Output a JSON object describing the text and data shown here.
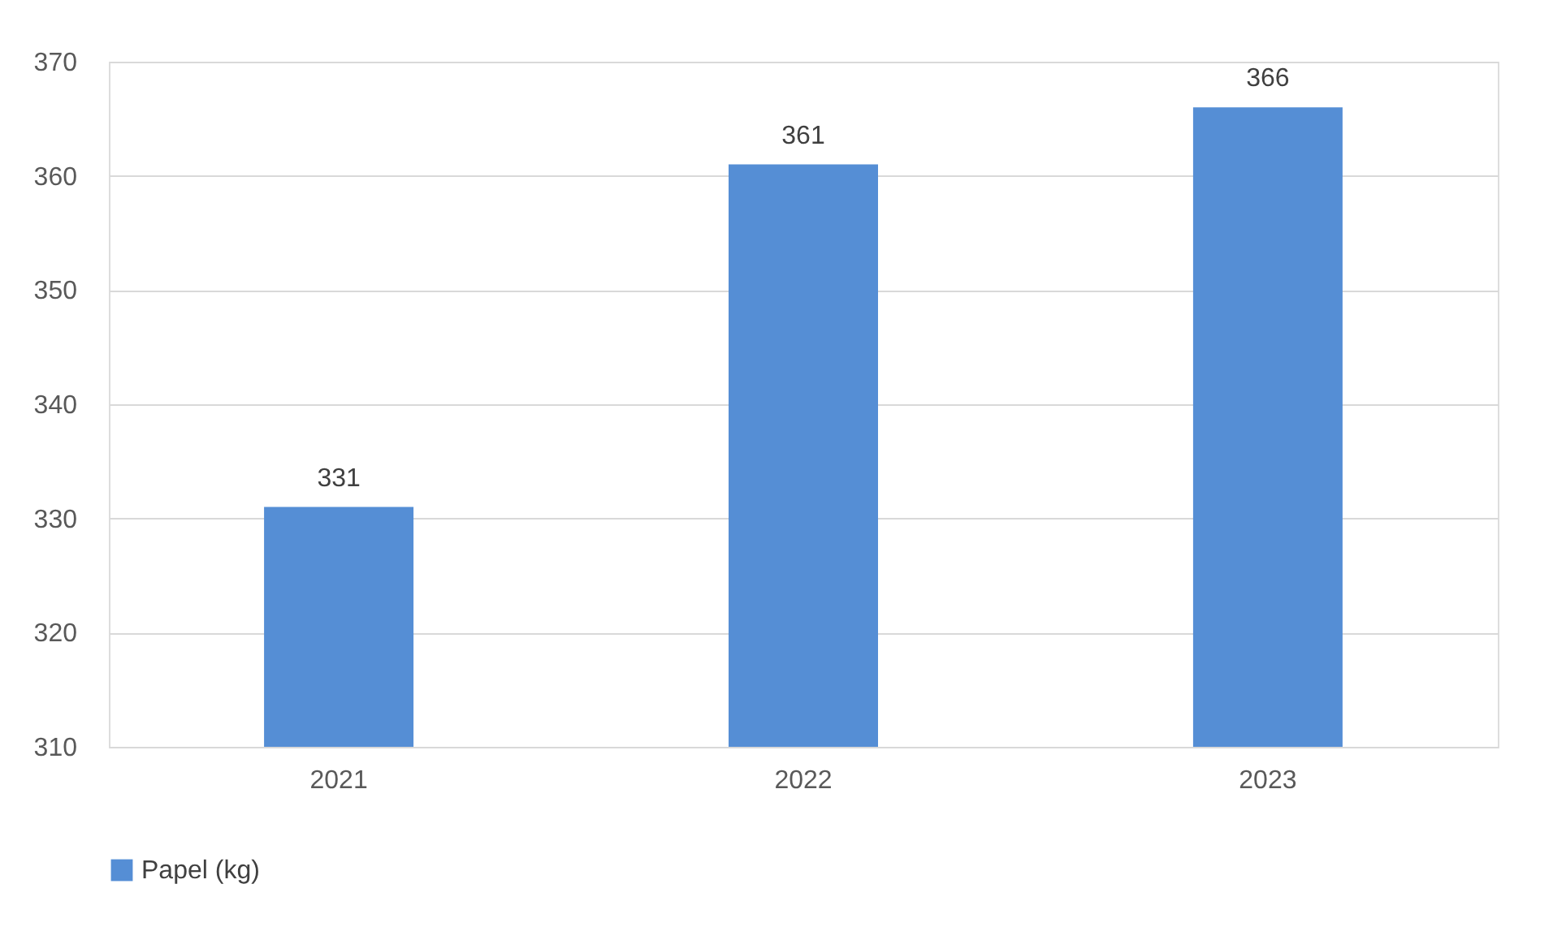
{
  "chart_data": {
    "type": "bar",
    "categories": [
      "2021",
      "2022",
      "2023"
    ],
    "series": [
      {
        "name": "Papel (kg)",
        "color": "#558ed5",
        "values": [
          331,
          361,
          366
        ]
      }
    ],
    "ylim": [
      310,
      370
    ],
    "yticks": [
      310,
      320,
      330,
      340,
      350,
      360,
      370
    ],
    "grid": "y",
    "legend": "bottom",
    "data_labels": true
  }
}
